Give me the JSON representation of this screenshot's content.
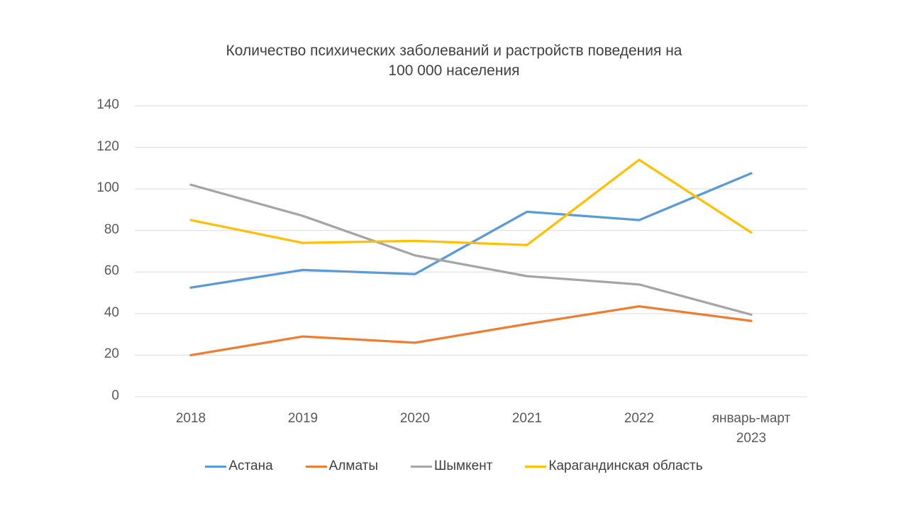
{
  "chart_data": {
    "type": "line",
    "title": "Количество психических заболеваний и растройств поведения на 100 000 населения",
    "title_lines": [
      "Количество психических заболеваний и растройств поведения на",
      "100 000 населения"
    ],
    "categories": [
      "2018",
      "2019",
      "2020",
      "2021",
      "2022",
      "январь-март 2023"
    ],
    "series": [
      {
        "name": "Астана",
        "color": "#5B9BD5",
        "values": [
          52.5,
          61,
          59,
          89,
          85,
          107.5
        ]
      },
      {
        "name": "Алматы",
        "color": "#ED7D31",
        "values": [
          20,
          29,
          26,
          35,
          43.5,
          36.5
        ]
      },
      {
        "name": "Шымкент",
        "color": "#A5A5A5",
        "values": [
          102,
          87,
          68,
          58,
          54,
          39.5
        ]
      },
      {
        "name": "Карагандинская область",
        "color": "#FFC000",
        "values": [
          85,
          74,
          75,
          73,
          114,
          79
        ]
      }
    ],
    "ylim": [
      0,
      140
    ],
    "ytick_step": 20,
    "yticks": [
      0,
      20,
      40,
      60,
      80,
      100,
      120,
      140
    ],
    "xlabel": "",
    "ylabel": "",
    "grid": "horizontal",
    "legend_position": "bottom"
  },
  "colors": {
    "grid": "#D9D9D9",
    "axis_text": "#595959",
    "title_text": "#404040",
    "background": "#FFFFFF"
  }
}
